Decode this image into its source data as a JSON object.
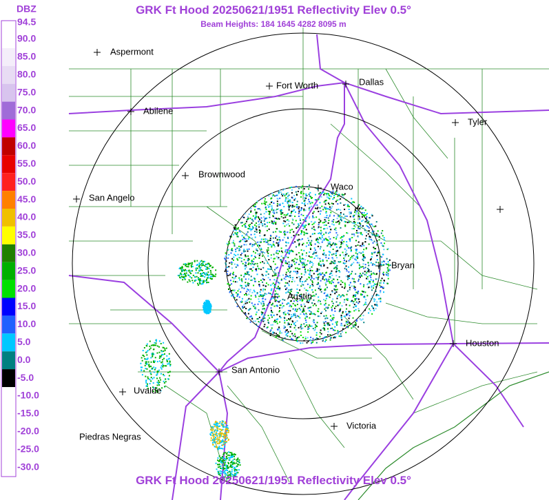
{
  "header": {
    "title": "GRK Ft Hood 20250621/1951 Reflectivity Elev 0.5°",
    "subtitle": "Beam Heights: 184 1645 4282 8095 m",
    "footer": "GRK Ft Hood 20250621/1951 Reflectivity Elev 0.5°"
  },
  "legend": {
    "title": "DBZ",
    "labels": [
      "94.5",
      "90.0",
      "85.0",
      "80.0",
      "75.0",
      "70.0",
      "65.0",
      "60.0",
      "55.0",
      "50.0",
      "45.0",
      "40.0",
      "35.0",
      "30.0",
      "25.0",
      "20.0",
      "15.0",
      "10.0",
      "5.0",
      "0.0",
      "-5.0",
      "-10.0",
      "-15.0",
      "-20.0",
      "-25.0",
      "-30.0"
    ]
  },
  "cities": [
    "Aspermont",
    "Fort Worth",
    "Dallas",
    "Abilene",
    "Tyler",
    "Brownwood",
    "Waco",
    "San Angelo",
    "Bryan",
    "Austin",
    "Houston",
    "San Antonio",
    "Uvalde",
    "Victoria",
    "Piedras Negras"
  ]
}
